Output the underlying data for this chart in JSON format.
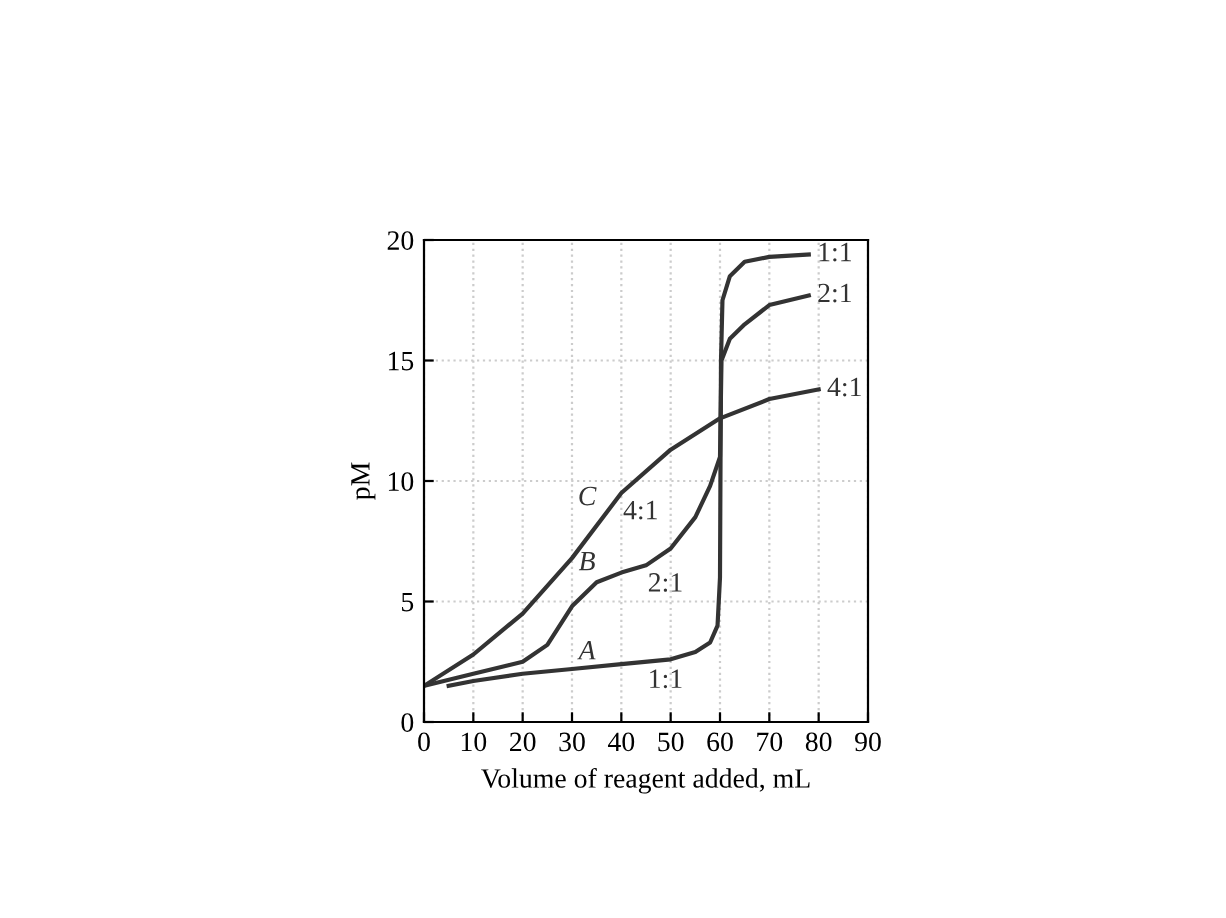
{
  "chart_data": {
    "type": "line",
    "xlabel": "Volume of reagent added, mL",
    "ylabel": "pM",
    "xlim": [
      0,
      90
    ],
    "ylim": [
      0,
      20
    ],
    "xticks": [
      0,
      10,
      20,
      30,
      40,
      50,
      60,
      70,
      80,
      90
    ],
    "yticks": [
      0,
      5,
      10,
      15,
      20
    ],
    "grid": true,
    "legend": false,
    "marker": "none",
    "line_style": "solid",
    "series": [
      {
        "name": "1:1",
        "color": "#333333",
        "x": [
          5,
          10,
          20,
          30,
          40,
          50,
          55,
          58,
          59.5,
          60,
          60.2,
          60.5,
          62,
          65,
          70,
          78
        ],
        "values": [
          1.5,
          1.7,
          2,
          2.2,
          2.4,
          2.6,
          2.9,
          3.3,
          4,
          6,
          15,
          17.5,
          18.5,
          19.1,
          19.3,
          19.4
        ]
      },
      {
        "name": "2:1",
        "color": "#333333",
        "x": [
          0,
          10,
          20,
          25,
          30,
          35,
          40,
          45,
          50,
          55,
          58,
          60,
          60.3,
          62,
          65,
          70,
          78
        ],
        "values": [
          1.5,
          2,
          2.5,
          3.2,
          4.8,
          5.8,
          6.2,
          6.5,
          7.2,
          8.5,
          9.8,
          11,
          15,
          15.9,
          16.5,
          17.3,
          17.7
        ]
      },
      {
        "name": "4:1",
        "color": "#333333",
        "x": [
          0,
          10,
          20,
          30,
          40,
          50,
          60,
          70,
          80
        ],
        "values": [
          1.5,
          2.8,
          4.5,
          6.8,
          9.5,
          11.3,
          12.6,
          13.4,
          13.8
        ]
      }
    ],
    "annotations": [
      {
        "text": "C",
        "x": 37,
        "y": 8.7
      },
      {
        "text": "4:1",
        "x": 40,
        "y": 9.5
      },
      {
        "text": "B",
        "x": 37,
        "y": 6
      },
      {
        "text": "2:1",
        "x": 45,
        "y": 6.5
      },
      {
        "text": "A",
        "x": 37,
        "y": 2.3
      },
      {
        "text": "1:1",
        "x": 45,
        "y": 2.5
      }
    ]
  }
}
